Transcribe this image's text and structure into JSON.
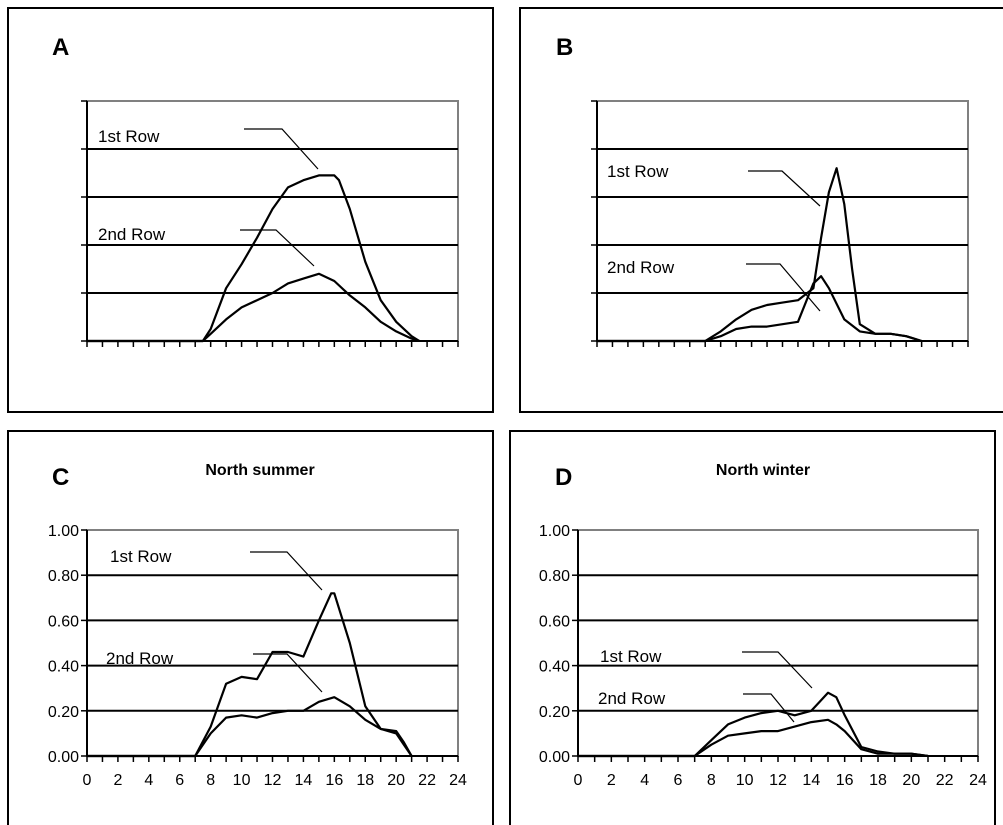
{
  "chart_data": [
    {
      "panel": "A",
      "type": "line",
      "title": "",
      "xlabel": "",
      "ylabel": "",
      "xlim": [
        0,
        24
      ],
      "ylim": [
        0,
        1.0
      ],
      "grid": true,
      "show_tick_labels": false,
      "x_ticks": [
        0,
        2,
        4,
        6,
        8,
        10,
        12,
        14,
        16,
        18,
        20,
        22,
        24
      ],
      "y_ticks": [
        0,
        0.2,
        0.4,
        0.6,
        0.8,
        1.0
      ],
      "series": [
        {
          "name": "1st Row",
          "x": [
            0,
            7.5,
            8,
            9,
            10,
            11,
            12,
            13,
            14,
            15,
            16,
            16.3,
            17,
            18,
            19,
            20,
            21,
            21.5
          ],
          "y": [
            0,
            0,
            0.05,
            0.22,
            0.32,
            0.43,
            0.55,
            0.64,
            0.67,
            0.69,
            0.69,
            0.67,
            0.55,
            0.33,
            0.17,
            0.08,
            0.02,
            0
          ]
        },
        {
          "name": "2nd Row",
          "x": [
            0,
            7.5,
            8,
            9,
            10,
            11,
            12,
            13,
            14,
            15,
            16,
            17,
            18,
            19,
            20,
            21,
            21.5
          ],
          "y": [
            0,
            0,
            0.03,
            0.09,
            0.14,
            0.17,
            0.2,
            0.24,
            0.26,
            0.28,
            0.25,
            0.19,
            0.14,
            0.08,
            0.04,
            0.01,
            0
          ]
        }
      ]
    },
    {
      "panel": "B",
      "type": "line",
      "title": "",
      "xlabel": "",
      "ylabel": "",
      "xlim": [
        0,
        24
      ],
      "ylim": [
        0,
        1.0
      ],
      "grid": true,
      "show_tick_labels": false,
      "x_ticks": [
        0,
        2,
        4,
        6,
        8,
        10,
        12,
        14,
        16,
        18,
        20,
        22,
        24
      ],
      "y_ticks": [
        0,
        0.2,
        0.4,
        0.6,
        0.8,
        1.0
      ],
      "series": [
        {
          "name": "1st Row",
          "x": [
            0,
            7,
            8,
            9,
            10,
            11,
            12,
            13,
            14,
            14.5,
            15,
            15.5,
            16,
            16.5,
            17,
            18,
            19,
            20,
            20.5,
            21
          ],
          "y": [
            0,
            0,
            0.04,
            0.09,
            0.13,
            0.15,
            0.16,
            0.17,
            0.22,
            0.43,
            0.62,
            0.72,
            0.57,
            0.3,
            0.07,
            0.03,
            0.03,
            0.02,
            0.01,
            0
          ]
        },
        {
          "name": "2nd Row",
          "x": [
            0,
            7,
            8,
            9,
            10,
            11,
            12,
            13,
            14,
            14.5,
            15,
            16,
            17,
            18,
            19,
            20,
            21
          ],
          "y": [
            0,
            0,
            0.02,
            0.05,
            0.06,
            0.06,
            0.07,
            0.08,
            0.24,
            0.27,
            0.22,
            0.09,
            0.04,
            0.03,
            0.03,
            0.02,
            0
          ]
        }
      ]
    },
    {
      "panel": "C",
      "type": "line",
      "title": "North summer",
      "xlabel": "",
      "ylabel": "",
      "xlim": [
        0,
        24
      ],
      "ylim": [
        0,
        1.0
      ],
      "grid": true,
      "show_tick_labels": true,
      "x_ticks": [
        0,
        2,
        4,
        6,
        8,
        10,
        12,
        14,
        16,
        18,
        20,
        22,
        24
      ],
      "x_tick_labels": [
        "0",
        "2",
        "4",
        "6",
        "8",
        "10",
        "12",
        "14",
        "16",
        "18",
        "20",
        "22",
        "24"
      ],
      "y_ticks": [
        0,
        0.2,
        0.4,
        0.6,
        0.8,
        1.0
      ],
      "y_tick_labels": [
        "0.00",
        "0.20",
        "0.40",
        "0.60",
        "0.80",
        "1.00"
      ],
      "series": [
        {
          "name": "1st Row",
          "x": [
            0,
            7,
            8,
            9,
            10,
            11,
            12,
            13,
            14,
            15,
            15.8,
            16,
            17,
            18,
            19,
            20,
            20.5,
            21
          ],
          "y": [
            0,
            0,
            0.13,
            0.32,
            0.35,
            0.34,
            0.46,
            0.46,
            0.44,
            0.6,
            0.72,
            0.72,
            0.5,
            0.22,
            0.12,
            0.11,
            0.06,
            0
          ]
        },
        {
          "name": "2nd Row",
          "x": [
            0,
            7,
            8,
            9,
            10,
            11,
            12,
            13,
            14,
            15,
            16,
            17,
            18,
            19,
            20,
            20.5,
            21
          ],
          "y": [
            0,
            0,
            0.1,
            0.17,
            0.18,
            0.17,
            0.19,
            0.2,
            0.2,
            0.24,
            0.26,
            0.22,
            0.16,
            0.12,
            0.1,
            0.05,
            0
          ]
        }
      ]
    },
    {
      "panel": "D",
      "type": "line",
      "title": "North winter",
      "xlabel": "",
      "ylabel": "",
      "xlim": [
        0,
        24
      ],
      "ylim": [
        0,
        1.0
      ],
      "grid": true,
      "show_tick_labels": true,
      "x_ticks": [
        0,
        2,
        4,
        6,
        8,
        10,
        12,
        14,
        16,
        18,
        20,
        22,
        24
      ],
      "x_tick_labels": [
        "0",
        "2",
        "4",
        "6",
        "8",
        "10",
        "12",
        "14",
        "16",
        "18",
        "20",
        "22",
        "24"
      ],
      "y_ticks": [
        0,
        0.2,
        0.4,
        0.6,
        0.8,
        1.0
      ],
      "y_tick_labels": [
        "0.00",
        "0.20",
        "0.40",
        "0.60",
        "0.80",
        "1.00"
      ],
      "series": [
        {
          "name": "1st Row",
          "x": [
            0,
            7,
            8,
            9,
            10,
            11,
            12,
            13,
            14,
            14.5,
            15,
            15.5,
            16,
            17,
            18,
            19,
            20,
            20.5,
            21
          ],
          "y": [
            0,
            0,
            0.07,
            0.14,
            0.17,
            0.19,
            0.2,
            0.18,
            0.2,
            0.24,
            0.28,
            0.26,
            0.18,
            0.04,
            0.02,
            0.01,
            0.01,
            0.005,
            0
          ]
        },
        {
          "name": "2nd Row",
          "x": [
            0,
            7,
            8,
            9,
            10,
            11,
            12,
            13,
            14,
            15,
            15.5,
            16,
            17,
            18,
            19,
            20,
            20.5,
            21
          ],
          "y": [
            0,
            0,
            0.05,
            0.09,
            0.1,
            0.11,
            0.11,
            0.13,
            0.15,
            0.16,
            0.14,
            0.11,
            0.03,
            0.01,
            0.01,
            0.01,
            0.005,
            0
          ]
        }
      ]
    }
  ]
}
